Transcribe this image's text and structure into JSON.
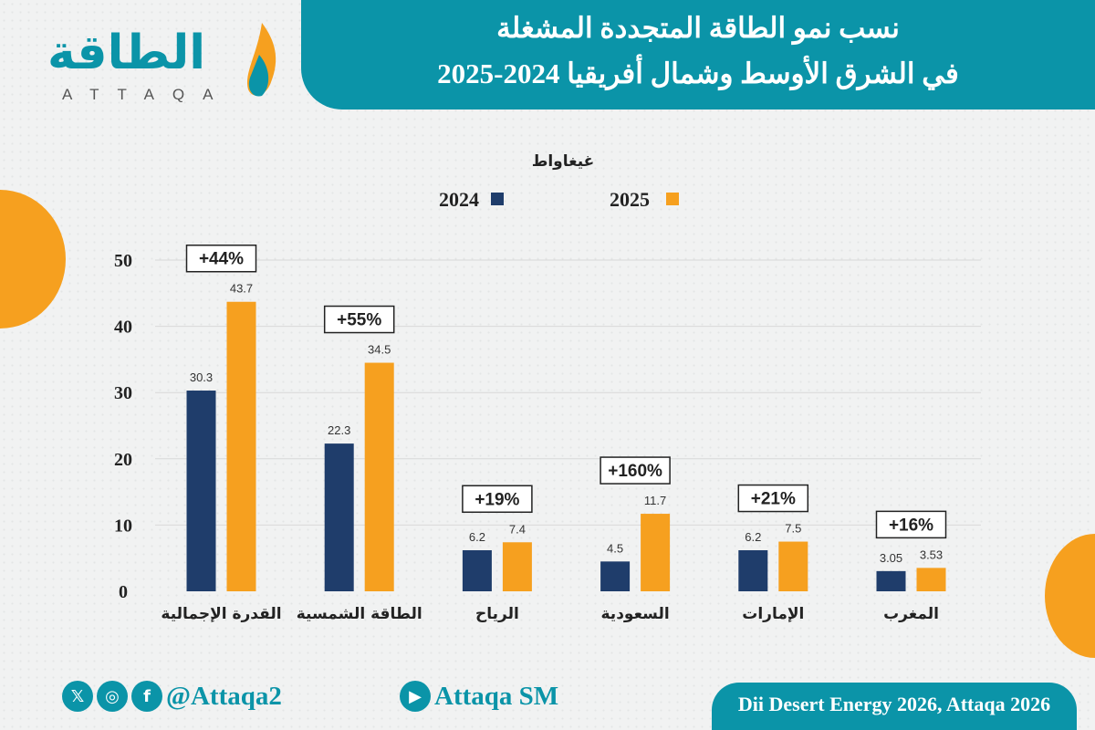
{
  "header": {
    "title_line1": "نسب نمو الطاقة المتجددة المشغلة",
    "title_line2": "في الشرق الأوسط وشمال أفريقيا 2024-2025"
  },
  "logo": {
    "arabic": "الطاقة",
    "latin": "ATTAQA"
  },
  "chart_data": {
    "type": "bar",
    "unit": "غيغاواط",
    "categories": [
      "القدرة الإجمالية",
      "الطاقة الشمسية",
      "الرياح",
      "السعودية",
      "الإمارات",
      "المغرب"
    ],
    "series": [
      {
        "name": "2024",
        "color": "#1f3d6b",
        "values": [
          30.3,
          22.3,
          6.2,
          4.5,
          6.2,
          3.05
        ],
        "labels": [
          "30.3",
          "22.3",
          "6.2",
          "4.5",
          "6.2",
          "3.05"
        ]
      },
      {
        "name": "2025",
        "color": "#f6a01f",
        "values": [
          43.7,
          34.5,
          7.4,
          11.7,
          7.5,
          3.53
        ],
        "labels": [
          "43.7",
          "34.5",
          "7.4",
          "11.7",
          "7.5",
          "3.53"
        ]
      }
    ],
    "growth_labels": [
      "+44%",
      "+55%",
      "+19%",
      "+160%",
      "+21%",
      "+16%"
    ],
    "ylim": [
      0,
      50
    ],
    "yticks": [
      "0",
      "10",
      "20",
      "30",
      "40",
      "50"
    ],
    "grid": true,
    "legend": "top"
  },
  "footer": {
    "social_handle": "@Attaqa2",
    "youtube": "Attaqa SM",
    "source": "Dii Desert Energy 2026, Attaqa 2026",
    "icons": [
      "x-icon",
      "instagram-icon",
      "facebook-icon",
      "youtube-icon"
    ]
  }
}
